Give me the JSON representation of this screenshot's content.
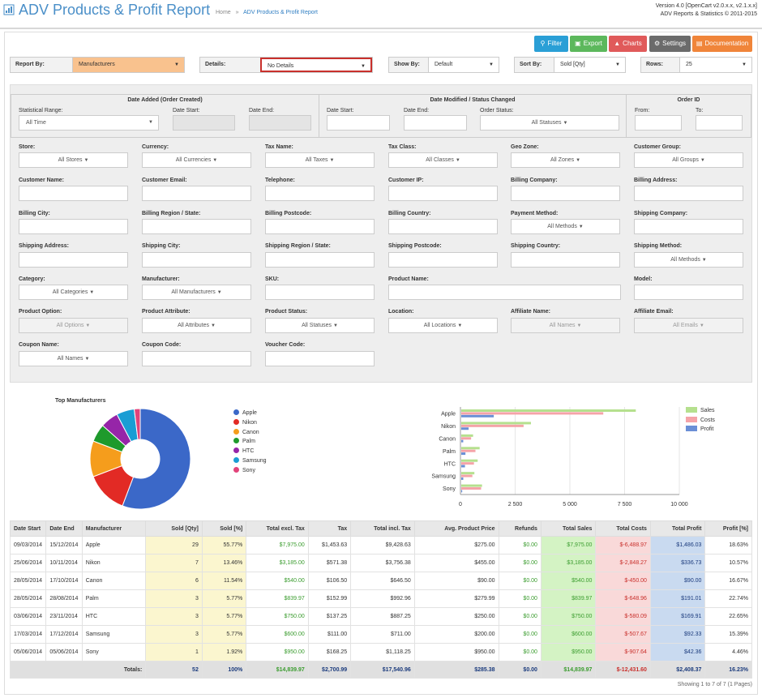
{
  "header": {
    "title": "ADV Products & Profit Report",
    "breadcrumb_home": "Home",
    "breadcrumb_sep": "»",
    "breadcrumb_current": "ADV Products & Profit Report",
    "version_line1": "Version 4.0 [OpenCart v2.0.x.x, v2.1.x.x]",
    "version_line2": "ADV Reports & Statistics © 2011-2015"
  },
  "toolbar": {
    "filter": "Filter",
    "export": "Export",
    "charts": "Charts",
    "settings": "Settings",
    "documentation": "Documentation"
  },
  "filter_bar": {
    "report_by_label": "Report By:",
    "report_by_value": "Manufacturers",
    "details_label": "Details:",
    "details_value": "No Details",
    "show_by_label": "Show By:",
    "show_by_value": "Default",
    "sort_by_label": "Sort By:",
    "sort_by_value": "Sold [Qty]",
    "rows_label": "Rows:",
    "rows_value": "25"
  },
  "dates": {
    "added_title": "Date Added (Order Created)",
    "stat_range_label": "Statistical Range:",
    "stat_range_value": "All Time",
    "date_start_label": "Date Start:",
    "date_end_label": "Date End:",
    "modified_title": "Date Modified / Status Changed",
    "order_status_label": "Order Status:",
    "order_status_value": "All Statuses",
    "order_id_title": "Order ID",
    "from_label": "From:",
    "to_label": "To:"
  },
  "filters": {
    "store": "Store:",
    "store_v": "All Stores",
    "currency": "Currency:",
    "currency_v": "All Currencies",
    "tax_name": "Tax Name:",
    "tax_name_v": "All Taxes",
    "tax_class": "Tax Class:",
    "tax_class_v": "All Classes",
    "geo_zone": "Geo Zone:",
    "geo_zone_v": "All Zones",
    "customer_group": "Customer Group:",
    "customer_group_v": "All Groups",
    "customer_name": "Customer Name:",
    "customer_email": "Customer Email:",
    "telephone": "Telephone:",
    "customer_ip": "Customer IP:",
    "billing_company": "Billing Company:",
    "billing_address": "Billing Address:",
    "billing_city": "Billing City:",
    "billing_region": "Billing Region / State:",
    "billing_postcode": "Billing Postcode:",
    "billing_country": "Billing Country:",
    "payment_method": "Payment Method:",
    "payment_method_v": "All Methods",
    "shipping_company": "Shipping Company:",
    "shipping_address": "Shipping Address:",
    "shipping_city": "Shipping City:",
    "shipping_region": "Shipping Region / State:",
    "shipping_postcode": "Shipping Postcode:",
    "shipping_country": "Shipping Country:",
    "shipping_method": "Shipping Method:",
    "shipping_method_v": "All Methods",
    "category": "Category:",
    "category_v": "All Categories",
    "manufacturer": "Manufacturer:",
    "manufacturer_v": "All Manufacturers",
    "sku": "SKU:",
    "product_name": "Product Name:",
    "model": "Model:",
    "product_option": "Product Option:",
    "product_option_v": "All Options",
    "product_attribute": "Product Attribute:",
    "product_attribute_v": "All Attributes",
    "product_status": "Product Status:",
    "product_status_v": "All Statuses",
    "location": "Location:",
    "location_v": "All Locations",
    "affiliate_name": "Affiliate Name:",
    "affiliate_name_v": "All Names",
    "affiliate_email": "Affiliate Email:",
    "affiliate_email_v": "All Emails",
    "coupon_name": "Coupon Name:",
    "coupon_name_v": "All Names",
    "coupon_code": "Coupon Code:",
    "voucher_code": "Voucher Code:"
  },
  "chart_data": [
    {
      "type": "pie",
      "title": "Top Manufacturers",
      "categories": [
        "Apple",
        "Nikon",
        "Canon",
        "Palm",
        "HTC",
        "Samsung",
        "Sony"
      ],
      "values": [
        29,
        7,
        6,
        3,
        3,
        3,
        1
      ],
      "colors": [
        "#3b68c8",
        "#e22a25",
        "#f59d1c",
        "#1e9a2c",
        "#9625a8",
        "#1a9dd4",
        "#e2437a"
      ],
      "legend": "right"
    },
    {
      "type": "bar",
      "orientation": "horizontal",
      "categories": [
        "Apple",
        "Nikon",
        "Canon",
        "Palm",
        "HTC",
        "Samsung",
        "Sony"
      ],
      "series": [
        {
          "name": "Sales",
          "color": "#b5e08e",
          "values": [
            7975,
            3185,
            540,
            839.97,
            750,
            600,
            950
          ]
        },
        {
          "name": "Costs",
          "color": "#f5a3a8",
          "values": [
            6488.97,
            2848.27,
            450,
            648.96,
            580.09,
            507.67,
            907.64
          ]
        },
        {
          "name": "Profit",
          "color": "#6a8fd6",
          "values": [
            1486.03,
            336.73,
            90,
            191.01,
            169.91,
            92.33,
            42.36
          ]
        }
      ],
      "xticks": [
        "0",
        "2 500",
        "5 000",
        "7 500",
        "10 000"
      ],
      "xlim": [
        0,
        10000
      ],
      "legend": "top-right"
    }
  ],
  "table": {
    "headers": [
      "Date Start",
      "Date End",
      "Manufacturer",
      "Sold [Qty]",
      "Sold [%]",
      "Total excl. Tax",
      "Tax",
      "Total incl. Tax",
      "Avg. Product Price",
      "Refunds",
      "Total Sales",
      "Total Costs",
      "Total Profit",
      "Profit [%]"
    ],
    "rows": [
      [
        "09/03/2014",
        "15/12/2014",
        "Apple",
        "29",
        "55.77%",
        "$7,975.00",
        "$1,453.63",
        "$9,428.63",
        "$275.00",
        "$0.00",
        "$7,975.00",
        "$-6,488.97",
        "$1,486.03",
        "18.63%"
      ],
      [
        "25/06/2014",
        "10/11/2014",
        "Nikon",
        "7",
        "13.46%",
        "$3,185.00",
        "$571.38",
        "$3,756.38",
        "$455.00",
        "$0.00",
        "$3,185.00",
        "$-2,848.27",
        "$336.73",
        "10.57%"
      ],
      [
        "28/05/2014",
        "17/10/2014",
        "Canon",
        "6",
        "11.54%",
        "$540.00",
        "$106.50",
        "$646.50",
        "$90.00",
        "$0.00",
        "$540.00",
        "$-450.00",
        "$90.00",
        "16.67%"
      ],
      [
        "28/05/2014",
        "28/08/2014",
        "Palm",
        "3",
        "5.77%",
        "$839.97",
        "$152.99",
        "$992.96",
        "$279.99",
        "$0.00",
        "$839.97",
        "$-648.96",
        "$191.01",
        "22.74%"
      ],
      [
        "03/06/2014",
        "23/11/2014",
        "HTC",
        "3",
        "5.77%",
        "$750.00",
        "$137.25",
        "$887.25",
        "$250.00",
        "$0.00",
        "$750.00",
        "$-580.09",
        "$169.91",
        "22.65%"
      ],
      [
        "17/03/2014",
        "17/12/2014",
        "Samsung",
        "3",
        "5.77%",
        "$600.00",
        "$111.00",
        "$711.00",
        "$200.00",
        "$0.00",
        "$600.00",
        "$-507.67",
        "$92.33",
        "15.39%"
      ],
      [
        "05/06/2014",
        "05/06/2014",
        "Sony",
        "1",
        "1.92%",
        "$950.00",
        "$168.25",
        "$1,118.25",
        "$950.00",
        "$0.00",
        "$950.00",
        "$-907.64",
        "$42.36",
        "4.46%"
      ]
    ],
    "totals": [
      "Totals:",
      "52",
      "100%",
      "$14,839.97",
      "$2,700.99",
      "$17,540.96",
      "$285.38",
      "$0.00",
      "$14,839.97",
      "$-12,431.60",
      "$2,408.37",
      "16.23%"
    ]
  },
  "footer": {
    "showing": "Showing 1 to 7 of 7 (1 Pages)"
  }
}
